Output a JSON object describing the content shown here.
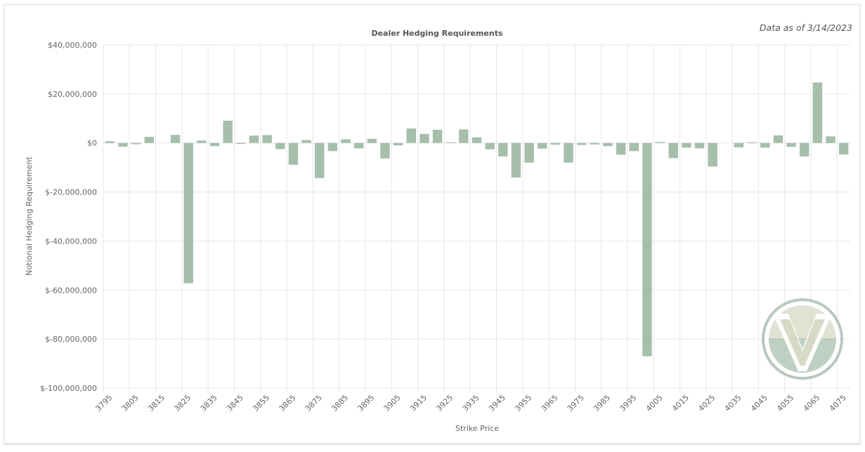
{
  "chart_data": {
    "type": "bar",
    "title": "Dealer Hedging Requirements",
    "subtitle": "Data as of 3/14/2023",
    "xlabel": "Strike Price",
    "ylabel": "Notional Hedging Requirement",
    "ylim": [
      -100000000,
      40000000
    ],
    "yticks": [
      40000000,
      20000000,
      0,
      -20000000,
      -40000000,
      -60000000,
      -80000000,
      -100000000
    ],
    "ytick_labels": [
      "$40,000,000",
      "$20,000,000",
      "$0",
      "$-20,000,000",
      "$-40,000,000",
      "$-60,000,000",
      "$-80,000,000",
      "$-100,000,000"
    ],
    "xtick_labels": [
      "3795",
      "3805",
      "3815",
      "3825",
      "3835",
      "3845",
      "3855",
      "3865",
      "3875",
      "3885",
      "3895",
      "3905",
      "3915",
      "3925",
      "3935",
      "3945",
      "3955",
      "3965",
      "3975",
      "3985",
      "3995",
      "4005",
      "4015",
      "4025",
      "4035",
      "4045",
      "4055",
      "4065",
      "4075"
    ],
    "grid": true,
    "legend": false,
    "bar_color": "#a5bfab",
    "categories": [
      "3795",
      "3800",
      "3805",
      "3810",
      "3815",
      "3820",
      "3825",
      "3830",
      "3835",
      "3840",
      "3845",
      "3850",
      "3855",
      "3860",
      "3865",
      "3870",
      "3875",
      "3880",
      "3885",
      "3890",
      "3895",
      "3900",
      "3905",
      "3910",
      "3915",
      "3920",
      "3925",
      "3930",
      "3935",
      "3940",
      "3945",
      "3950",
      "3955",
      "3960",
      "3965",
      "3970",
      "3975",
      "3980",
      "3985",
      "3990",
      "3995",
      "4000",
      "4005",
      "4010",
      "4015",
      "4020",
      "4025",
      "4030",
      "4035",
      "4040",
      "4045",
      "4050",
      "4055",
      "4060",
      "4065",
      "4070",
      "4075"
    ],
    "values": [
      700000,
      -1500000,
      -500000,
      2500000,
      0,
      3300000,
      -57200000,
      1000000,
      -1300000,
      9100000,
      -400000,
      3000000,
      3200000,
      -2500000,
      -8900000,
      1200000,
      -14300000,
      -3300000,
      1500000,
      -2200000,
      1700000,
      -6300000,
      -1000000,
      5900000,
      3700000,
      5400000,
      300000,
      5500000,
      2300000,
      -2600000,
      -5500000,
      -14100000,
      -8000000,
      -2300000,
      -700000,
      -8000000,
      -800000,
      -600000,
      -1300000,
      -4800000,
      -3300000,
      -87000000,
      400000,
      -6200000,
      -1900000,
      -2200000,
      -9600000,
      0,
      -1800000,
      300000,
      -1900000,
      3100000,
      -1600000,
      -5500000,
      24700000,
      2700000,
      -4700000
    ]
  }
}
